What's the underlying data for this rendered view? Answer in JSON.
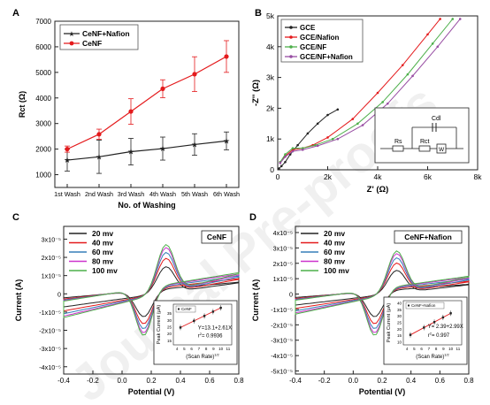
{
  "watermark": "Journal Pre-proofs",
  "chart_data": [
    {
      "panel": "A",
      "type": "line",
      "xlabel": "No. of Washing",
      "ylabel": "Rct (Ω)",
      "categories": [
        "1st Wash",
        "2nd Wash",
        "3rd Wash",
        "4th Wash",
        "5th Wash",
        "6th Wash"
      ],
      "yticks": [
        "1000",
        "2000",
        "3000",
        "4000",
        "5000",
        "6000",
        "7000"
      ],
      "ylim": [
        500,
        7000
      ],
      "legend_position": "top-left",
      "series": [
        {
          "name": "CeNF+Nafion",
          "color": "#222222",
          "marker": "star",
          "values": [
            1570,
            1700,
            1900,
            2020,
            2180,
            2320
          ],
          "errors": [
            430,
            650,
            520,
            450,
            420,
            350
          ]
        },
        {
          "name": "CeNF",
          "color": "#e41a1c",
          "marker": "circle",
          "values": [
            2000,
            2580,
            3470,
            4360,
            4930,
            5620
          ],
          "errors": [
            120,
            200,
            500,
            350,
            680,
            620
          ]
        }
      ]
    },
    {
      "panel": "B",
      "type": "scatter",
      "xlabel": "Z' (Ω)",
      "ylabel": "-Z'' (Ω)",
      "xticks": [
        "0",
        "2k",
        "4k",
        "6k",
        "8k"
      ],
      "yticks": [
        "0",
        "1k",
        "2k",
        "3k",
        "4k",
        "5k"
      ],
      "xlim": [
        0,
        8000
      ],
      "ylim": [
        0,
        5000
      ],
      "legend_position": "top-left",
      "inset_labels": {
        "cdl": "Cdl",
        "rs": "Rs",
        "rct": "Rct",
        "w": "W"
      },
      "series": [
        {
          "name": "GCE",
          "color": "#222222",
          "points": [
            [
              50,
              40
            ],
            [
              150,
              120
            ],
            [
              300,
              250
            ],
            [
              500,
              500
            ],
            [
              800,
              800
            ],
            [
              1200,
              1180
            ],
            [
              1600,
              1500
            ],
            [
              2000,
              1780
            ],
            [
              2400,
              1960
            ]
          ]
        },
        {
          "name": "GCE/Nafion",
          "color": "#e41a1c",
          "points": [
            [
              100,
              250
            ],
            [
              300,
              450
            ],
            [
              600,
              650
            ],
            [
              1000,
              700
            ],
            [
              1400,
              800
            ],
            [
              2000,
              1050
            ],
            [
              3000,
              1650
            ],
            [
              4000,
              2500
            ],
            [
              5000,
              3400
            ],
            [
              6000,
              4400
            ],
            [
              6500,
              4900
            ]
          ]
        },
        {
          "name": "GCE/NF",
          "color": "#4daf4a",
          "points": [
            [
              100,
              250
            ],
            [
              300,
              500
            ],
            [
              600,
              700
            ],
            [
              1000,
              700
            ],
            [
              1500,
              800
            ],
            [
              2200,
              1000
            ],
            [
              3200,
              1500
            ],
            [
              4200,
              2200
            ],
            [
              5200,
              3100
            ],
            [
              6200,
              4100
            ],
            [
              7000,
              4900
            ]
          ]
        },
        {
          "name": "GCE/NF+Nafion",
          "color": "#984ea3",
          "points": [
            [
              100,
              220
            ],
            [
              300,
              420
            ],
            [
              600,
              600
            ],
            [
              1000,
              650
            ],
            [
              1600,
              780
            ],
            [
              2400,
              1000
            ],
            [
              3400,
              1450
            ],
            [
              4400,
              2150
            ],
            [
              5400,
              3050
            ],
            [
              6400,
              4000
            ],
            [
              7300,
              4900
            ]
          ]
        }
      ]
    },
    {
      "panel": "C",
      "type": "line",
      "title": "CeNF",
      "xlabel": "Potential (V)",
      "ylabel": "Current (A)",
      "xticks": [
        "-0.4",
        "-0.2",
        "0.0",
        "0.2",
        "0.4",
        "0.6",
        "0.8"
      ],
      "xlim": [
        -0.4,
        0.8
      ],
      "yticks": [
        "-4x10⁻⁵",
        "-3x10⁻⁵",
        "-2x10⁻⁵",
        "-1x10⁻⁵",
        "0",
        "1x10⁻⁵",
        "2x10⁻⁵",
        "3x10⁻⁵"
      ],
      "ylim": [
        -4.4e-05,
        3.7e-05
      ],
      "legend_position": "top-left",
      "series": [
        {
          "name": "20 mv",
          "color": "#222222",
          "scale": 0.55
        },
        {
          "name": "40 mv",
          "color": "#e41a1c",
          "scale": 0.72
        },
        {
          "name": "60 mv",
          "color": "#377eb8",
          "scale": 0.84
        },
        {
          "name": "80 mv",
          "color": "#cc33cc",
          "scale": 0.94
        },
        {
          "name": "100 mv",
          "color": "#4daf4a",
          "scale": 1.0
        }
      ],
      "inset": {
        "legend": "CeNF",
        "xlabel": "(Scan Rate)",
        "xlabel_exp": "1/2",
        "ylabel": "Peak Current (μA)",
        "equation": "Y=13.1+2.61X",
        "r2_label": "r",
        "r2_exp": "2",
        "r2_value": "= 0.9936",
        "xticks": [
          "4",
          "5",
          "6",
          "7",
          "8",
          "9",
          "10",
          "11"
        ],
        "yticks": [
          "15",
          "20",
          "25",
          "30",
          "35"
        ],
        "points": [
          [
            4.47,
            24.8
          ],
          [
            6.32,
            29.7
          ],
          [
            7.75,
            33.3
          ],
          [
            8.94,
            36.5
          ],
          [
            10.0,
            39.3
          ]
        ]
      }
    },
    {
      "panel": "D",
      "type": "line",
      "title": "CeNF+Nafion",
      "xlabel": "Potential (V)",
      "ylabel": "Current (A)",
      "xticks": [
        "-0.4",
        "-0.2",
        "0.0",
        "0.2",
        "0.4",
        "0.6",
        "0.8"
      ],
      "xlim": [
        -0.4,
        0.8
      ],
      "yticks": [
        "-5x10⁻⁵",
        "-4x10⁻⁵",
        "-3x10⁻⁵",
        "-2x10⁻⁵",
        "-1x10⁻⁵",
        "0",
        "1x10⁻⁵",
        "2x10⁻⁵",
        "3x10⁻⁵",
        "4x10⁻⁵"
      ],
      "ylim": [
        -5.2e-05,
        4.4e-05
      ],
      "legend_position": "top-left",
      "series": [
        {
          "name": "20 mv",
          "color": "#222222",
          "scale": 0.55
        },
        {
          "name": "40 mv",
          "color": "#e41a1c",
          "scale": 0.72
        },
        {
          "name": "60 mv",
          "color": "#377eb8",
          "scale": 0.84
        },
        {
          "name": "80 mv",
          "color": "#cc33cc",
          "scale": 0.94
        },
        {
          "name": "100 mv",
          "color": "#4daf4a",
          "scale": 1.0
        }
      ],
      "inset": {
        "legend": "CeNF+Nafion",
        "xlabel": "(Scan Rate)",
        "xlabel_exp": "1/2",
        "ylabel": "Peak Current (μA)",
        "equation": "Y= 2.39+2.99X",
        "r2_label": "r",
        "r2_exp": "2",
        "r2_value": "= 0.997",
        "xticks": [
          "4",
          "5",
          "6",
          "7",
          "8",
          "9",
          "10",
          "11"
        ],
        "yticks": [
          "10",
          "15",
          "20",
          "25",
          "30",
          "35",
          "40"
        ],
        "points": [
          [
            4.47,
            15.7
          ],
          [
            6.32,
            21.3
          ],
          [
            7.75,
            25.5
          ],
          [
            8.94,
            29.1
          ],
          [
            10.0,
            32.3
          ]
        ]
      }
    }
  ]
}
